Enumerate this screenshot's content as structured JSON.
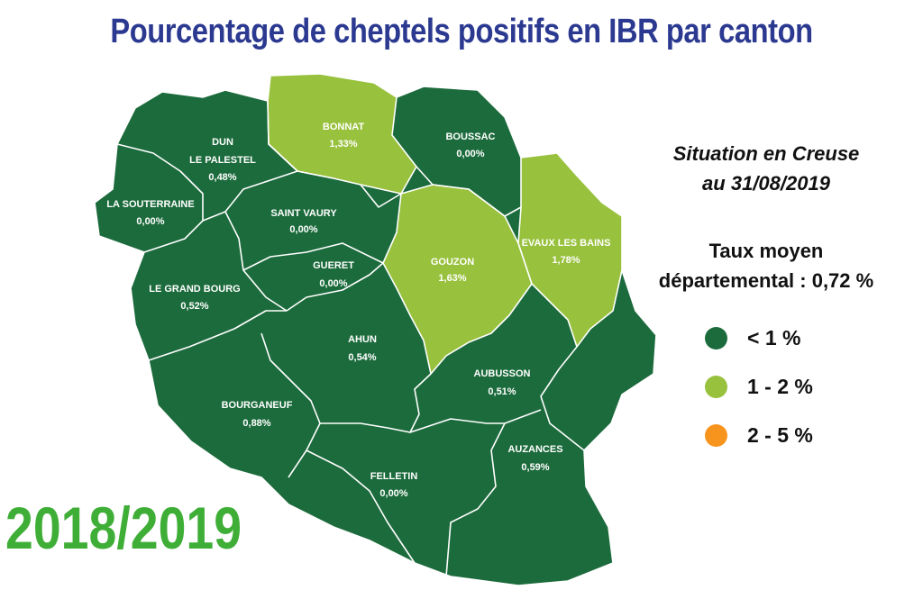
{
  "title": "Pourcentage de cheptels positifs en IBR par canton",
  "situation": {
    "line1": "Situation en Creuse",
    "line2": "au 31/08/2019"
  },
  "taux": {
    "line1": "Taux moyen",
    "line2": "départemental : 0,72 %"
  },
  "legend": [
    {
      "label": "< 1 %",
      "color": "#1c6b3c"
    },
    {
      "label": "1 - 2 %",
      "color": "#98c13d"
    },
    {
      "label": "2 - 5 %",
      "color": "#f7941d"
    }
  ],
  "season": "2018/2019",
  "cantons": [
    {
      "name": "DUN",
      "name2": "LE PALESTEL",
      "value": "0,48%",
      "class": "< 1 %"
    },
    {
      "name": "BONNAT",
      "value": "1,33%",
      "class": "1 - 2 %"
    },
    {
      "name": "BOUSSAC",
      "value": "0,00%",
      "class": "< 1 %"
    },
    {
      "name": "LA SOUTERRAINE",
      "value": "0,00%",
      "class": "< 1 %"
    },
    {
      "name": "SAINT VAURY",
      "value": "0,00%",
      "class": "< 1 %"
    },
    {
      "name": "GOUZON",
      "value": "1,63%",
      "class": "1 - 2 %"
    },
    {
      "name": "EVAUX LES BAINS",
      "value": "1,78%",
      "class": "1 - 2 %"
    },
    {
      "name": "GUERET",
      "value": "0,00%",
      "class": "< 1 %"
    },
    {
      "name": "LE GRAND BOURG",
      "value": "0,52%",
      "class": "< 1 %"
    },
    {
      "name": "AHUN",
      "value": "0,54%",
      "class": "< 1 %"
    },
    {
      "name": "AUBUSSON",
      "value": "0,51%",
      "class": "< 1 %"
    },
    {
      "name": "BOURGANEUF",
      "value": "0,88%",
      "class": "< 1 %"
    },
    {
      "name": "AUZANCES",
      "value": "0,59%",
      "class": "< 1 %"
    },
    {
      "name": "FELLETIN",
      "value": "0,00%",
      "class": "< 1 %"
    }
  ]
}
